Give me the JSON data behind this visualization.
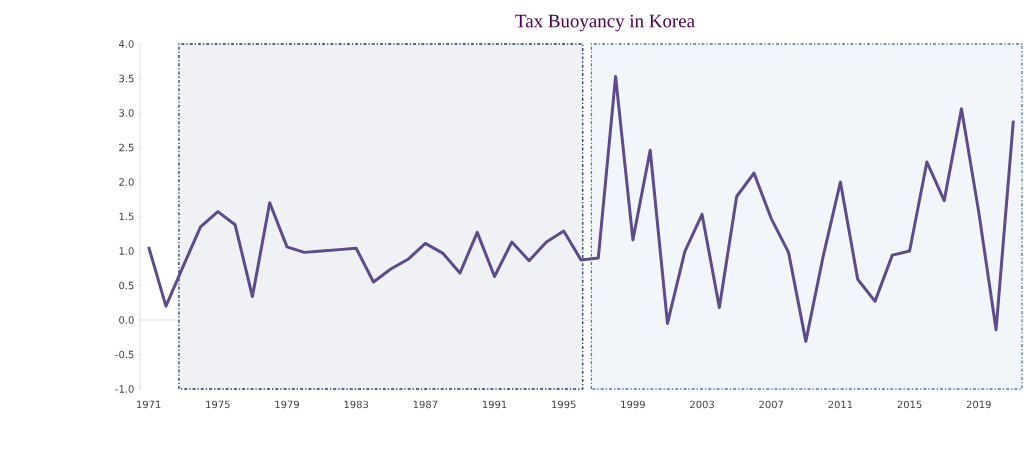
{
  "chart_data": {
    "type": "line",
    "title": "Tax Buoyancy in Korea",
    "x": [
      1971,
      1972,
      1973,
      1974,
      1975,
      1976,
      1977,
      1978,
      1979,
      1980,
      1981,
      1982,
      1983,
      1984,
      1985,
      1986,
      1987,
      1988,
      1989,
      1990,
      1991,
      1992,
      1993,
      1994,
      1995,
      1996,
      1997,
      1998,
      1999,
      2000,
      2001,
      2002,
      2003,
      2004,
      2005,
      2006,
      2007,
      2008,
      2009,
      2010,
      2011,
      2012,
      2013,
      2014,
      2015,
      2016,
      2017,
      2018,
      2019,
      2020,
      2021
    ],
    "series": [
      {
        "color": "#5e4b8b",
        "values": [
          1.06,
          0.2,
          0.78,
          1.35,
          1.57,
          1.38,
          0.34,
          1.7,
          1.06,
          0.98,
          1.0,
          1.02,
          1.04,
          0.55,
          0.74,
          0.88,
          1.11,
          0.97,
          0.68,
          1.27,
          0.63,
          1.13,
          0.86,
          1.13,
          1.29,
          0.87,
          0.9,
          3.53,
          1.16,
          2.46,
          -0.05,
          0.99,
          1.53,
          0.18,
          1.79,
          2.13,
          1.47,
          0.98,
          -0.31,
          0.92,
          2.0,
          0.59,
          0.27,
          0.94,
          1.0,
          2.29,
          1.73,
          3.06,
          1.56,
          -0.14,
          2.89
        ]
      }
    ],
    "xlim": [
      1970.5,
      2021.5
    ],
    "xticks": [
      1971,
      1975,
      1979,
      1983,
      1987,
      1991,
      1995,
      1999,
      2003,
      2007,
      2011,
      2015,
      2019
    ],
    "ylim": [
      -1.0,
      4.0
    ],
    "yticks": [
      {
        "value": -1.0,
        "label": "-1.0"
      },
      {
        "value": -0.5,
        "label": "-0.5"
      },
      {
        "value": 0.0,
        "label": "0.0"
      },
      {
        "value": 0.5,
        "label": "0.5"
      },
      {
        "value": 1.0,
        "label": "1.0"
      },
      {
        "value": 1.5,
        "label": "1.5"
      },
      {
        "value": 2.0,
        "label": "2.0"
      },
      {
        "value": 2.5,
        "label": "2.5"
      },
      {
        "value": 3.0,
        "label": "3.0"
      },
      {
        "value": 3.5,
        "label": "3.5"
      },
      {
        "value": 4.0,
        "label": "4.0"
      }
    ],
    "bands": [
      {
        "axis": "x",
        "from": 1972.75,
        "to": 1996.1,
        "color": "#1f3864"
      },
      {
        "axis": "x",
        "from": 1996.6,
        "to": 2021.5,
        "color": "#4a7ab5"
      }
    ],
    "marker": "none",
    "line_style": "solid"
  }
}
